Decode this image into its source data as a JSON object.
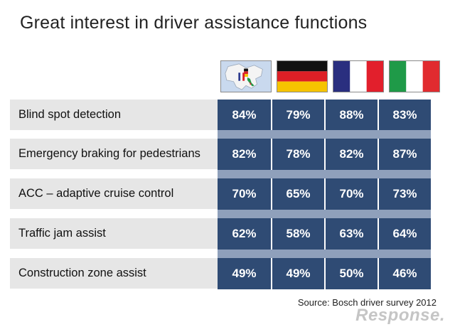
{
  "title": "Great interest in driver assistance functions",
  "source": "Source: Bosch driver survey 2012",
  "watermark": "Response.",
  "columns": [
    {
      "icon": "europe-map-icon"
    },
    {
      "icon": "germany-flag-icon"
    },
    {
      "icon": "france-flag-icon"
    },
    {
      "icon": "italy-flag-icon"
    }
  ],
  "colors": {
    "cell_bg": "#2f4b74",
    "separator": "#8fa0bb",
    "label_bg": "#e6e6e6",
    "cell_text": "#ffffff"
  },
  "chart_data": {
    "type": "table",
    "title": "Great interest in driver assistance functions",
    "columns": [
      "Europe",
      "Germany",
      "France",
      "Italy"
    ],
    "rows": [
      {
        "label": "Blind spot detection",
        "values": [
          "84%",
          "79%",
          "88%",
          "83%"
        ]
      },
      {
        "label": "Emergency braking for pedestrians",
        "values": [
          "82%",
          "78%",
          "82%",
          "87%"
        ]
      },
      {
        "label": "ACC – adaptive cruise control",
        "values": [
          "70%",
          "65%",
          "70%",
          "73%"
        ]
      },
      {
        "label": "Traffic jam assist",
        "values": [
          "62%",
          "58%",
          "63%",
          "64%"
        ]
      },
      {
        "label": "Construction zone assist",
        "values": [
          "49%",
          "49%",
          "50%",
          "46%"
        ]
      }
    ]
  }
}
